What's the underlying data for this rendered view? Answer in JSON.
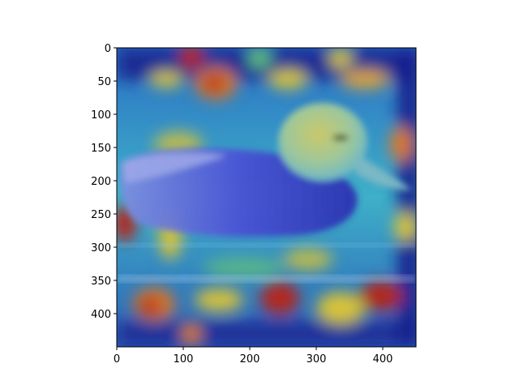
{
  "figure": {
    "x_axis": {
      "range": [
        0,
        450
      ],
      "ticks": [
        {
          "value": 0,
          "label": "0"
        },
        {
          "value": 100,
          "label": "100"
        },
        {
          "value": 200,
          "label": "200"
        },
        {
          "value": 300,
          "label": "300"
        },
        {
          "value": 400,
          "label": "400"
        }
      ]
    },
    "y_axis": {
      "range": [
        0,
        450
      ],
      "inverted": true,
      "ticks": [
        {
          "value": 0,
          "label": "0"
        },
        {
          "value": 50,
          "label": "50"
        },
        {
          "value": 100,
          "label": "100"
        },
        {
          "value": 150,
          "label": "150"
        },
        {
          "value": 200,
          "label": "200"
        },
        {
          "value": 250,
          "label": "250"
        },
        {
          "value": 300,
          "label": "300"
        },
        {
          "value": 350,
          "label": "350"
        },
        {
          "value": 400,
          "label": "400"
        }
      ]
    },
    "image": {
      "subject": "duck on water with heatmap overlay",
      "colormap": "jet",
      "colors": {
        "deep_blue": "#1a1f8c",
        "blue": "#2a4fd6",
        "cyan": "#3fc7d4",
        "green": "#62c27a",
        "yellow": "#d6c23a",
        "orange": "#d9782a",
        "red": "#b3261a"
      }
    }
  }
}
